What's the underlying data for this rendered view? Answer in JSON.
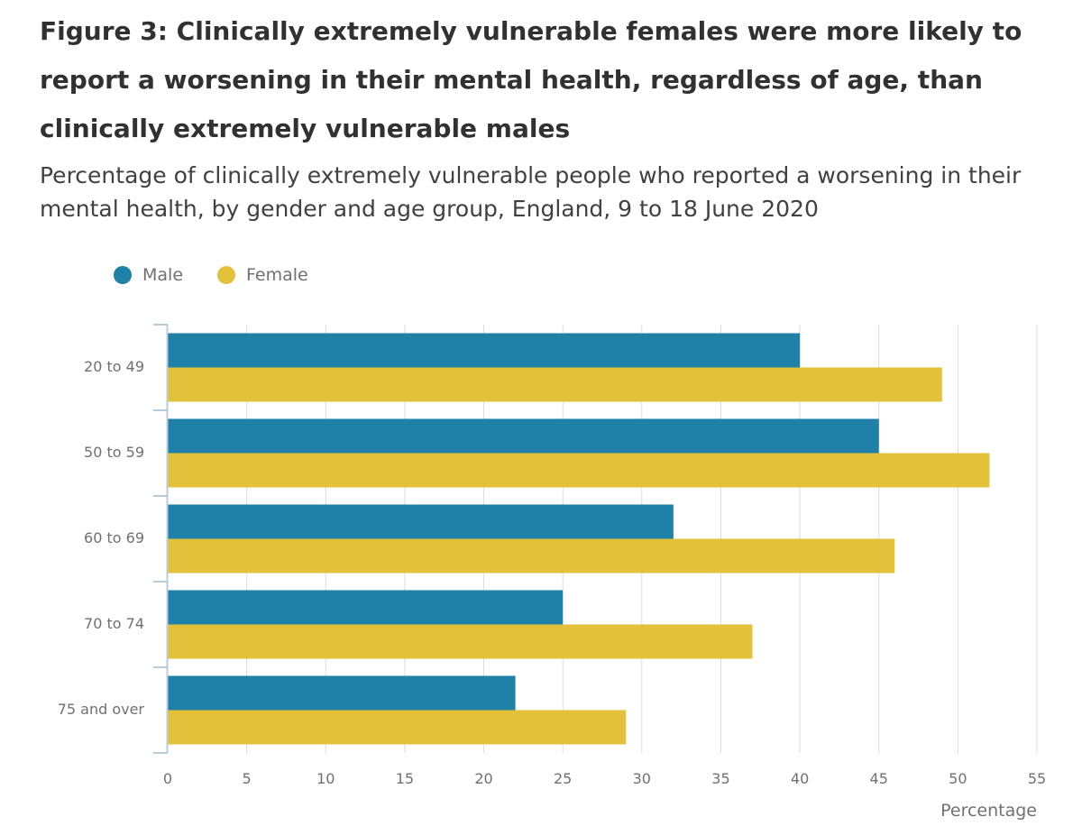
{
  "title": "Figure 3: Clinically extremely vulnerable females were more likely to report a worsening in their mental health, regardless of age, than clinically extremely vulnerable males",
  "subtitle": "Percentage of clinically extremely vulnerable people who reported a worsening in their mental health, by gender and age group, England, 9 to 18 June 2020",
  "legend": [
    {
      "name": "Male",
      "color": "#1f80a8"
    },
    {
      "name": "Female",
      "color": "#e3c13b"
    }
  ],
  "chart_data": {
    "type": "bar",
    "orientation": "horizontal",
    "title": "Figure 3: Clinically extremely vulnerable females were more likely to report a worsening in their mental health, regardless of age, than clinically extremely vulnerable males",
    "subtitle": "Percentage of clinically extremely vulnerable people who reported a worsening in their mental health, by gender and age group, England, 9 to 18 June 2020",
    "categories": [
      "20 to 49",
      "50 to 59",
      "60 to 69",
      "70 to 74",
      "75 and over"
    ],
    "series": [
      {
        "name": "Male",
        "color": "#1f80a8",
        "values": [
          40,
          45,
          32,
          25,
          22
        ]
      },
      {
        "name": "Female",
        "color": "#e3c13b",
        "values": [
          49,
          52,
          46,
          37,
          29
        ]
      }
    ],
    "xlabel": "Percentage",
    "ylabel": "",
    "xlim": [
      0,
      55
    ],
    "xticks": [
      0,
      5,
      10,
      15,
      20,
      25,
      30,
      35,
      40,
      45,
      50,
      55
    ],
    "grid": true,
    "legend_position": "top-left"
  }
}
